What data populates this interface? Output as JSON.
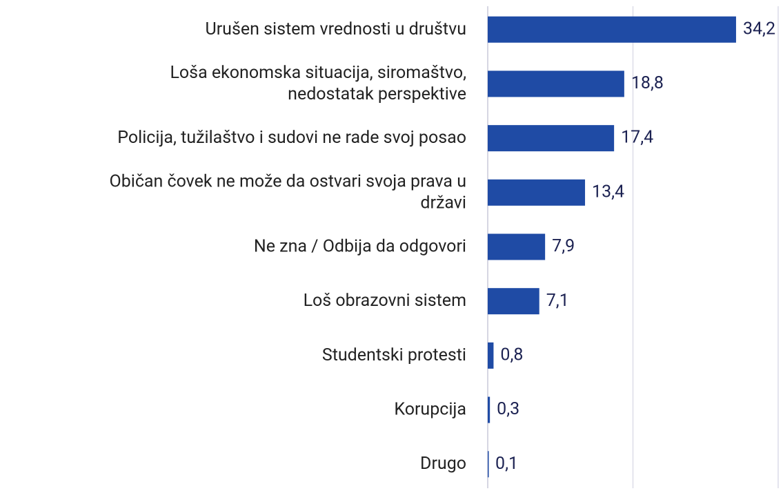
{
  "chart_data": {
    "type": "barh",
    "categories": [
      "Urušen sistem vrednosti u društvu",
      "Loša ekonomska situacija, siromaštvo,\nnedostatak perspektive",
      "Policija, tužilaštvo i sudovi ne rade svoj posao",
      "Običan čovek ne može da ostvari svoja prava u\ndržavi",
      "Ne zna / Odbija da odgovori",
      "Loš obrazovni sistem",
      "Studentski protesti",
      "Korupcija",
      "Drugo"
    ],
    "values": [
      34.2,
      18.8,
      17.4,
      13.4,
      7.9,
      7.1,
      0.8,
      0.3,
      0.1
    ],
    "value_labels": [
      "34,2",
      "18,8",
      "17,4",
      "13,4",
      "7,9",
      "7,1",
      "0,8",
      "0,3",
      "0,1"
    ],
    "color": "#1f4ba5",
    "xlim": [
      0,
      40
    ],
    "xticks": [
      0,
      20,
      40
    ],
    "grid": true
  }
}
